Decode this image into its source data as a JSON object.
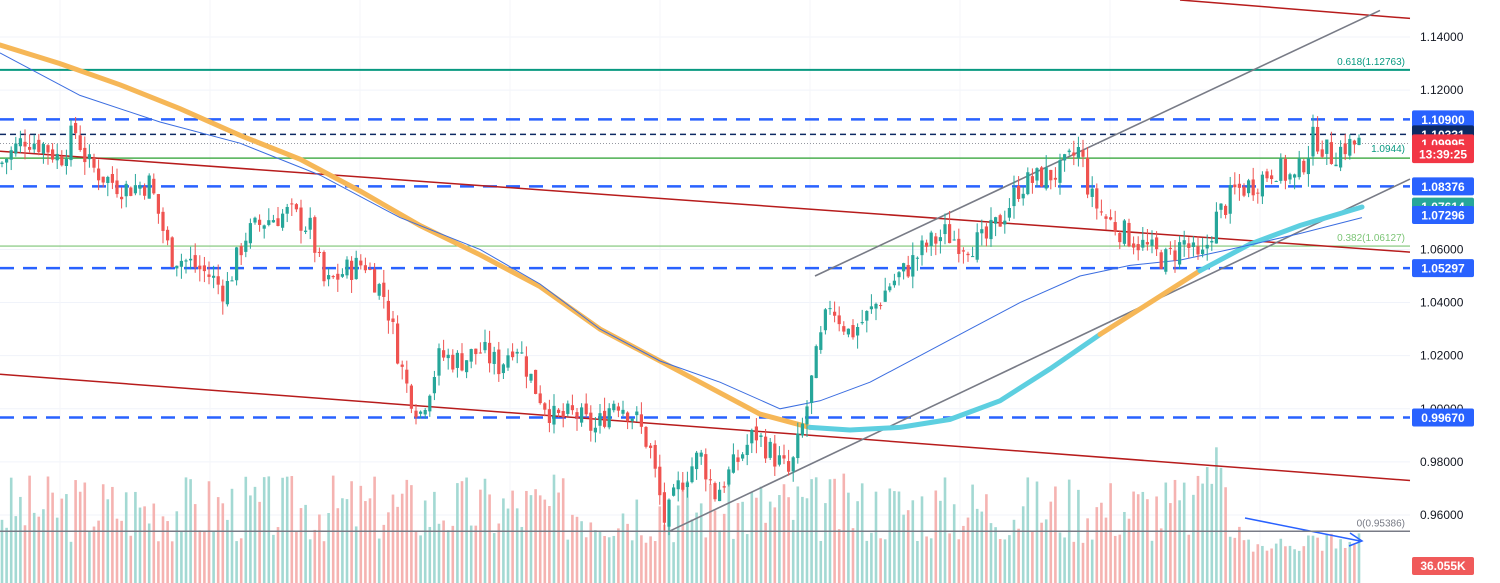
{
  "chart_data": {
    "type": "candlestick",
    "symbol_context": "EUR/USD daily-style candlestick chart with volume",
    "ylim": [
      0.948,
      1.162
    ],
    "y_ticks": [
      "1.14000",
      "1.12000",
      "1.06000",
      "1.04000",
      "1.02000",
      "1.00000",
      "0.98000",
      "0.96000"
    ],
    "price_path": [
      [
        0,
        1.092
      ],
      [
        25,
        1.102
      ],
      [
        45,
        1.099
      ],
      [
        60,
        1.094
      ],
      [
        75,
        1.105
      ],
      [
        88,
        1.092
      ],
      [
        105,
        1.087
      ],
      [
        125,
        1.083
      ],
      [
        150,
        1.085
      ],
      [
        170,
        1.058
      ],
      [
        190,
        1.055
      ],
      [
        210,
        1.05
      ],
      [
        225,
        1.044
      ],
      [
        245,
        1.065
      ],
      [
        265,
        1.071
      ],
      [
        290,
        1.074
      ],
      [
        310,
        1.068
      ],
      [
        325,
        1.046
      ],
      [
        345,
        1.052
      ],
      [
        365,
        1.055
      ],
      [
        385,
        1.042
      ],
      [
        405,
        1.01
      ],
      [
        420,
        0.998
      ],
      [
        440,
        1.02
      ],
      [
        460,
        1.018
      ],
      [
        480,
        1.022
      ],
      [
        500,
        1.016
      ],
      [
        515,
        1.026
      ],
      [
        535,
        1.008
      ],
      [
        555,
        0.996
      ],
      [
        575,
        0.998
      ],
      [
        595,
        0.992
      ],
      [
        615,
        1.004
      ],
      [
        635,
        0.997
      ],
      [
        650,
        0.985
      ],
      [
        665,
        0.957
      ],
      [
        680,
        0.972
      ],
      [
        700,
        0.983
      ],
      [
        715,
        0.968
      ],
      [
        735,
        0.979
      ],
      [
        755,
        0.991
      ],
      [
        770,
        0.984
      ],
      [
        790,
        0.975
      ],
      [
        805,
        0.997
      ],
      [
        815,
        1.017
      ],
      [
        830,
        1.04
      ],
      [
        850,
        1.028
      ],
      [
        870,
        1.036
      ],
      [
        890,
        1.047
      ],
      [
        905,
        1.052
      ],
      [
        925,
        1.061
      ],
      [
        945,
        1.066
      ],
      [
        965,
        1.062
      ],
      [
        985,
        1.063
      ],
      [
        1000,
        1.071
      ],
      [
        1020,
        1.084
      ],
      [
        1040,
        1.087
      ],
      [
        1060,
        1.089
      ],
      [
        1080,
        1.098
      ],
      [
        1090,
        1.08
      ],
      [
        1105,
        1.072
      ],
      [
        1125,
        1.066
      ],
      [
        1145,
        1.061
      ],
      [
        1165,
        1.056
      ],
      [
        1185,
        1.063
      ],
      [
        1200,
        1.054
      ],
      [
        1215,
        1.071
      ],
      [
        1235,
        1.082
      ],
      [
        1255,
        1.085
      ],
      [
        1275,
        1.091
      ],
      [
        1295,
        1.086
      ],
      [
        1315,
        1.103
      ],
      [
        1330,
        1.095
      ],
      [
        1345,
        1.099
      ],
      [
        1360,
        1.1
      ]
    ],
    "price_badges": [
      {
        "label": "1.10900",
        "value": 1.109,
        "color": "#2962ff"
      },
      {
        "label": "1.10331",
        "value": 1.10331,
        "color": "#0d2a63"
      },
      {
        "label": "1.09995",
        "value": 1.09995,
        "color": "#f23645"
      },
      {
        "label": "13:39:25",
        "value": 1.0959,
        "color": "#f23645"
      },
      {
        "label": "1.08376",
        "value": 1.08376,
        "color": "#2962ff"
      },
      {
        "label": "1.07614",
        "value": 1.07614,
        "color": "#26a69a"
      },
      {
        "label": "1.07296",
        "value": 1.07296,
        "color": "#2962ff"
      },
      {
        "label": "1.05297",
        "value": 1.05297,
        "color": "#2962ff"
      },
      {
        "label": "0.99670",
        "value": 0.9967,
        "color": "#2962ff"
      }
    ],
    "volume_label": "36.055K",
    "dashed_levels": [
      1.109,
      1.10331,
      1.08376,
      1.05297,
      0.9967
    ],
    "fib_levels": [
      {
        "label": "0.618(1.12763)",
        "value": 1.12763,
        "color": "#089981"
      },
      {
        "label": "0.382(1.06127)",
        "value": 1.06127,
        "color": "#7cc576"
      },
      {
        "label": "0(0.95386)",
        "value": 0.95386,
        "color": "#787b86"
      }
    ],
    "horizontal_green_level": 1.0944,
    "horizontal_green_label": "1.0944)"
  }
}
